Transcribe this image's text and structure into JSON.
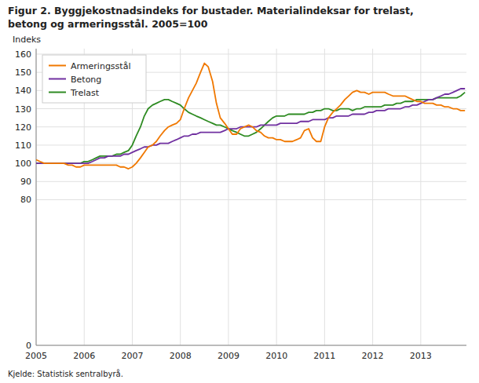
{
  "chart_data": {
    "type": "line",
    "title": "Figur 2. Byggjekostnadsindeks for bustader. Materialindeksar for trelast,",
    "subtitle": "betong og armeringsstål. 2005=100",
    "y_label": "Indeks",
    "source": "Kjelde: Statistisk sentralbyrå.",
    "xlim": [
      2005.0,
      2013.95
    ],
    "xticks": [
      2005,
      2006,
      2007,
      2008,
      2009,
      2010,
      2011,
      2012,
      2013
    ],
    "ylim": [
      0,
      163
    ],
    "yticks": [
      0,
      80,
      90,
      100,
      110,
      120,
      130,
      140,
      150,
      160
    ],
    "grid": true,
    "legend": "upper left",
    "x": [
      2005.0,
      2005.08,
      2005.17,
      2005.25,
      2005.33,
      2005.42,
      2005.5,
      2005.58,
      2005.67,
      2005.75,
      2005.83,
      2005.92,
      2006.0,
      2006.08,
      2006.17,
      2006.25,
      2006.33,
      2006.42,
      2006.5,
      2006.58,
      2006.67,
      2006.75,
      2006.83,
      2006.92,
      2007.0,
      2007.08,
      2007.17,
      2007.25,
      2007.33,
      2007.42,
      2007.5,
      2007.58,
      2007.67,
      2007.75,
      2007.83,
      2007.92,
      2008.0,
      2008.08,
      2008.17,
      2008.25,
      2008.33,
      2008.42,
      2008.5,
      2008.58,
      2008.67,
      2008.75,
      2008.83,
      2008.92,
      2009.0,
      2009.08,
      2009.17,
      2009.25,
      2009.33,
      2009.42,
      2009.5,
      2009.58,
      2009.67,
      2009.75,
      2009.83,
      2009.92,
      2010.0,
      2010.08,
      2010.17,
      2010.25,
      2010.33,
      2010.42,
      2010.5,
      2010.58,
      2010.67,
      2010.75,
      2010.83,
      2010.92,
      2011.0,
      2011.08,
      2011.17,
      2011.25,
      2011.33,
      2011.42,
      2011.5,
      2011.58,
      2011.67,
      2011.75,
      2011.83,
      2011.92,
      2012.0,
      2012.08,
      2012.17,
      2012.25,
      2012.33,
      2012.42,
      2012.5,
      2012.58,
      2012.67,
      2012.75,
      2012.83,
      2012.92,
      2013.0,
      2013.08,
      2013.17,
      2013.25,
      2013.33,
      2013.42,
      2013.5,
      2013.58,
      2013.67,
      2013.75,
      2013.83,
      2013.92
    ],
    "series": [
      {
        "name": "Trelast",
        "color": "#2e8b22",
        "values": [
          100,
          100,
          100,
          100,
          100,
          100,
          100,
          100,
          100,
          100,
          100,
          100,
          101,
          101,
          102,
          103,
          104,
          104,
          104,
          104,
          105,
          105,
          106,
          107,
          110,
          115,
          120,
          126,
          130,
          132,
          133,
          134,
          135,
          135,
          134,
          133,
          132,
          130,
          128,
          127,
          126,
          125,
          124,
          123,
          122,
          121,
          121,
          120,
          119,
          118,
          117,
          116,
          115,
          115,
          116,
          117,
          119,
          121,
          123,
          125,
          126,
          126,
          126,
          127,
          127,
          127,
          127,
          127,
          128,
          128,
          129,
          129,
          130,
          130,
          129,
          129,
          130,
          130,
          130,
          129,
          130,
          130,
          131,
          131,
          131,
          131,
          131,
          132,
          132,
          132,
          133,
          133,
          134,
          134,
          134,
          135,
          135,
          135,
          135,
          135,
          136,
          136,
          136,
          136,
          136,
          136,
          137,
          139
        ]
      },
      {
        "name": "Betong",
        "color": "#7030a0",
        "values": [
          100,
          100,
          100,
          100,
          100,
          100,
          100,
          100,
          100,
          100,
          100,
          100,
          100,
          100,
          101,
          102,
          103,
          103,
          104,
          104,
          104,
          104,
          105,
          105,
          106,
          107,
          108,
          109,
          109,
          110,
          110,
          111,
          111,
          111,
          112,
          113,
          114,
          115,
          115,
          116,
          116,
          117,
          117,
          117,
          117,
          117,
          117,
          118,
          119,
          119,
          119,
          120,
          120,
          120,
          120,
          120,
          121,
          121,
          121,
          121,
          121,
          122,
          122,
          122,
          122,
          122,
          123,
          123,
          123,
          124,
          124,
          124,
          124,
          125,
          125,
          126,
          126,
          126,
          126,
          127,
          127,
          127,
          127,
          128,
          128,
          129,
          129,
          129,
          130,
          130,
          130,
          130,
          131,
          131,
          132,
          132,
          133,
          134,
          135,
          135,
          136,
          137,
          138,
          138,
          139,
          140,
          141,
          141
        ]
      },
      {
        "name": "Armeringsstål",
        "color": "#f07800",
        "values": [
          102,
          101,
          100,
          100,
          100,
          100,
          100,
          100,
          99,
          99,
          98,
          98,
          99,
          99,
          99,
          99,
          99,
          99,
          99,
          99,
          99,
          98,
          98,
          97,
          98,
          100,
          103,
          106,
          109,
          110,
          112,
          115,
          118,
          120,
          121,
          122,
          124,
          130,
          136,
          140,
          144,
          150,
          155,
          153,
          145,
          133,
          125,
          122,
          119,
          116,
          116,
          119,
          120,
          121,
          120,
          118,
          117,
          115,
          114,
          114,
          113,
          113,
          112,
          112,
          112,
          113,
          114,
          118,
          119,
          114,
          112,
          112,
          120,
          125,
          128,
          130,
          132,
          135,
          137,
          139,
          140,
          139,
          139,
          138,
          139,
          139,
          139,
          139,
          138,
          137,
          137,
          137,
          137,
          136,
          135,
          134,
          134,
          133,
          133,
          133,
          132,
          132,
          131,
          131,
          130,
          130,
          129,
          129
        ]
      }
    ]
  }
}
